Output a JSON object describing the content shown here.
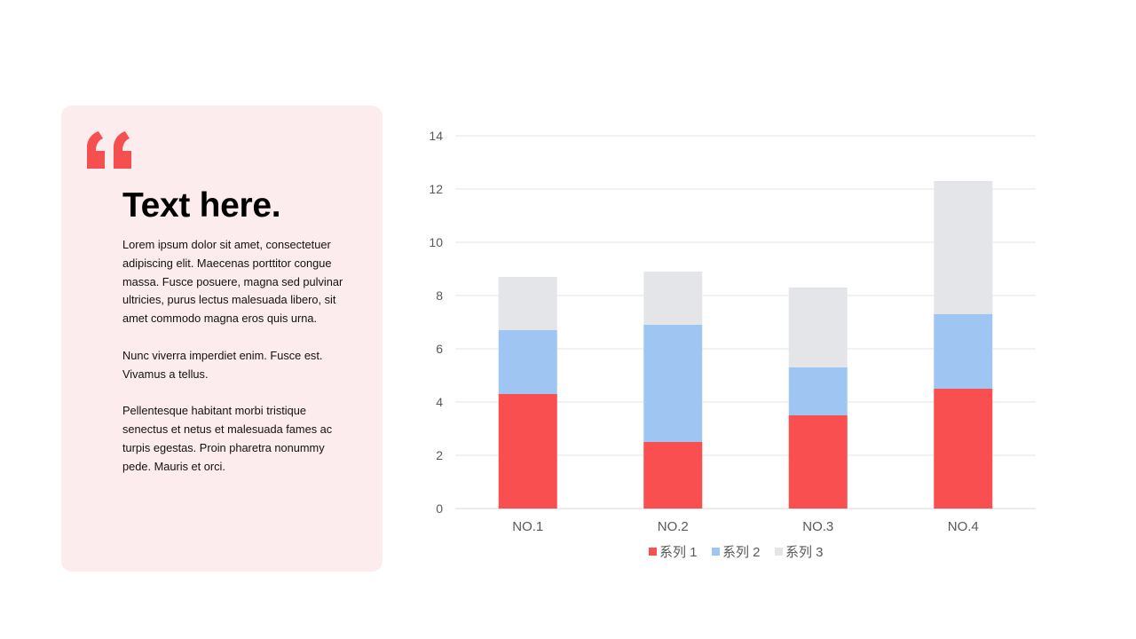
{
  "card": {
    "quote_mark": "“",
    "title": "Text here.",
    "paragraphs": [
      "Lorem ipsum dolor sit amet, consectetuer adipiscing elit. Maecenas porttitor congue massa. Fusce posuere, magna sed pulvinar ultricies, purus lectus malesuada libero, sit amet commodo magna eros quis urna.",
      "Nunc viverra imperdiet enim. Fusce est. Vivamus a tellus.",
      "Pellentesque habitant morbi tristique senectus et netus et malesuada fames ac turpis egestas. Proin pharetra nonummy pede. Mauris et orci."
    ]
  },
  "colors": {
    "accent": "#f64f50",
    "card_background": "#fdeced",
    "series_1": "#f94f51",
    "series_2": "#9fc6f2",
    "series_3": "#e4e5e8"
  },
  "chart_data": {
    "type": "bar",
    "stacked": true,
    "categories": [
      "NO.1",
      "NO.2",
      "NO.3",
      "NO.4"
    ],
    "series": [
      {
        "name": "系列 1",
        "values": [
          4.3,
          2.5,
          3.5,
          4.5
        ]
      },
      {
        "name": "系列 2",
        "values": [
          2.4,
          4.4,
          1.8,
          2.8
        ]
      },
      {
        "name": "系列 3",
        "values": [
          2.0,
          2.0,
          3.0,
          5.0
        ]
      }
    ],
    "ylim": [
      0,
      14
    ],
    "y_ticks": [
      "0",
      "2",
      "4",
      "6",
      "8",
      "10",
      "12",
      "14"
    ],
    "grid": true,
    "legend_position": "bottom",
    "title": "",
    "xlabel": "",
    "ylabel": ""
  }
}
